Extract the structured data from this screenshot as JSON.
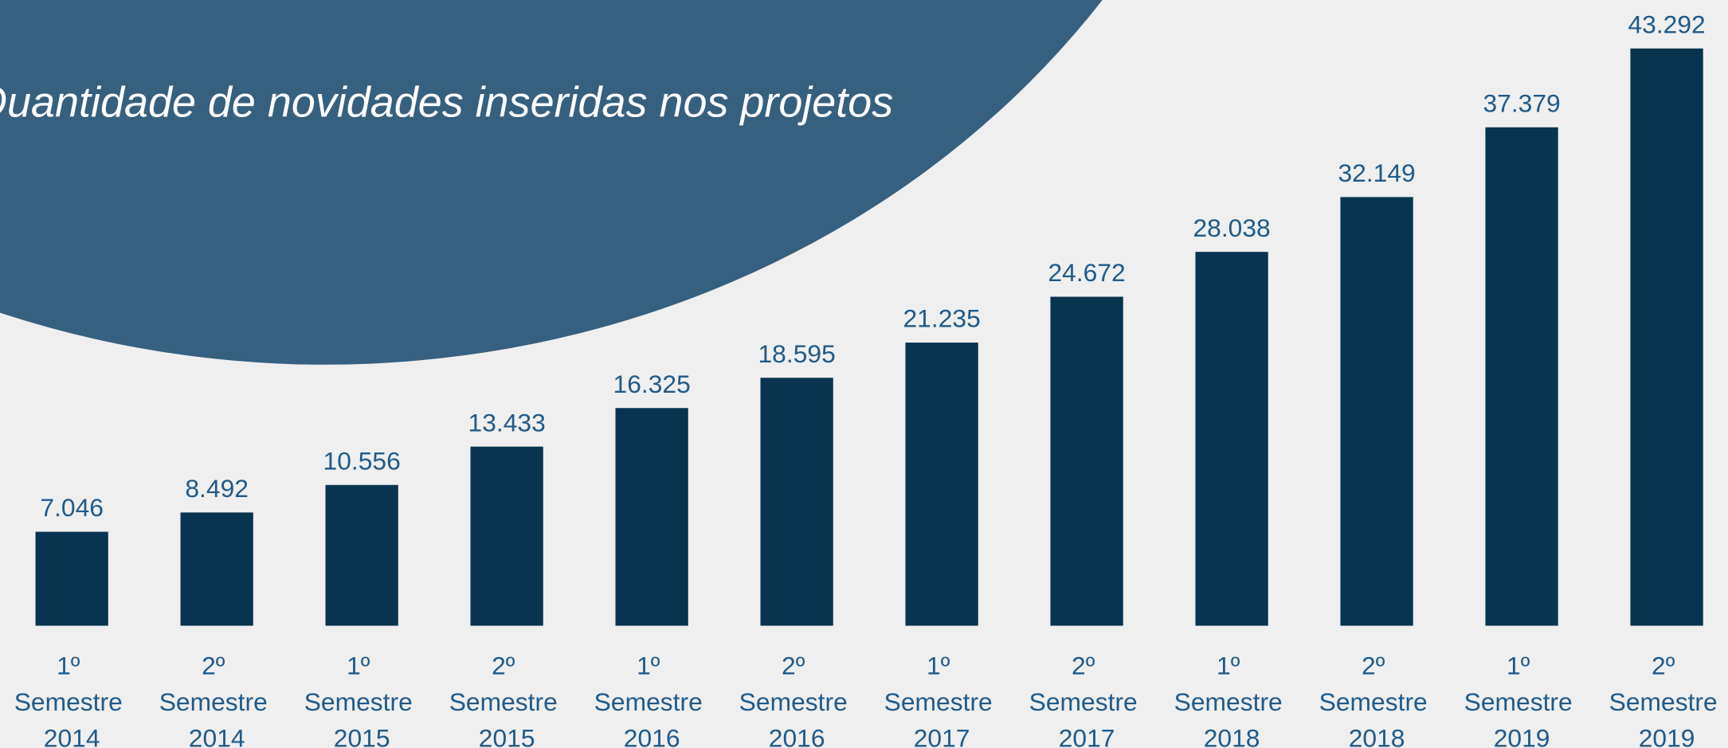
{
  "chart_data": {
    "type": "bar",
    "title": "Quantidade de novidades inseridas nos projetos",
    "categories": [
      "1º Semestre 2014",
      "2º Semestre 2014",
      "1º Semestre 2015",
      "2º Semestre 2015",
      "1º Semestre 2016",
      "2º Semestre 2016",
      "1º Semestre 2017",
      "2º Semestre 2017",
      "1º Semestre 2018",
      "2º Semestre 2018",
      "1º Semestre 2019",
      "2º Semestre 2019"
    ],
    "values": [
      7046,
      8492,
      10556,
      13433,
      16325,
      18595,
      21235,
      24672,
      28038,
      32149,
      37379,
      43292
    ],
    "value_labels": [
      "7.046",
      "8.492",
      "10.556",
      "13.433",
      "16.325",
      "18.595",
      "21.235",
      "24.672",
      "28.038",
      "32.149",
      "37.379",
      "43.292"
    ],
    "color": "#08344f"
  }
}
